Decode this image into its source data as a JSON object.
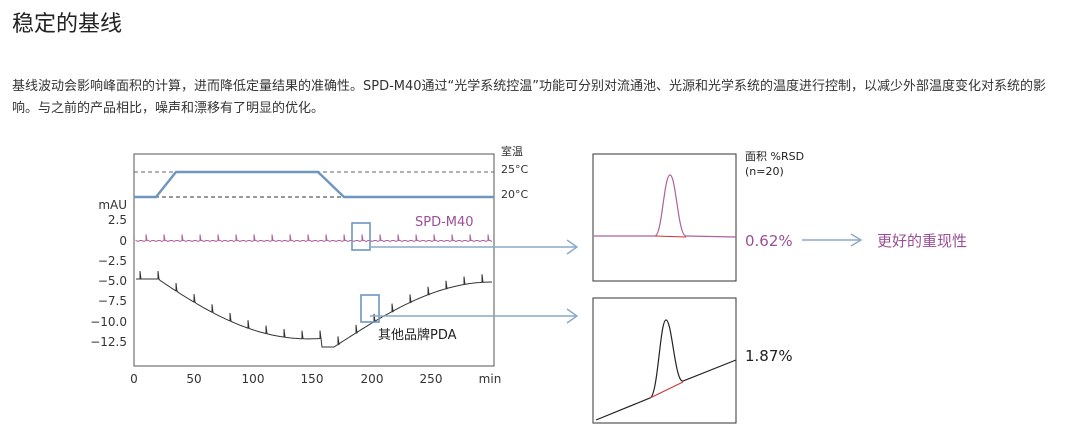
{
  "heading": "稳定的基线",
  "description": "基线波动会影响峰面积的计算，进而降低定量结果的准确性。SPD-M40通过“光学系统控温”功能可分别对流通池、光源和光学系统的温度进行控制，以减少外部温度变化对系统的影响。与之前的产品相比，噪声和漂移有了明显的优化。",
  "left_chart": {
    "ylabel": "mAU",
    "y_ticks": [
      "2.5",
      "0",
      "−2.5",
      "−5.0",
      "−7.5",
      "−10.0",
      "−12.5"
    ],
    "x_ticks": [
      "0",
      "50",
      "100",
      "150",
      "200",
      "250",
      "min"
    ],
    "temp_title": "室温",
    "temp_high": "25°C",
    "temp_low": "20°C",
    "series_spd": "SPD-M40",
    "series_other": "其他品牌PDA"
  },
  "right_panel": {
    "header_line1": "面积 %RSD",
    "header_line2": "(n=20)",
    "rsd_spd": "0.62%",
    "rsd_other": "1.87%",
    "conclusion": "更好的重现性"
  },
  "colors": {
    "accent_purple": "#9a4f97",
    "trace_pink": "#b0609a",
    "arrow_blue": "#8aa9c8",
    "temp_line": "#6e96bf"
  }
}
